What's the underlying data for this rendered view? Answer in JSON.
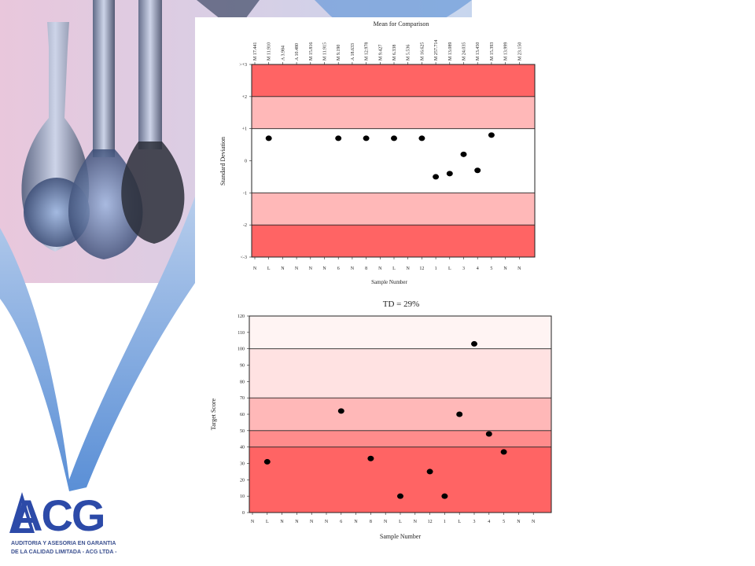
{
  "logo": {
    "brand": "ACG",
    "line1": "AUDITORIA Y ASESORIA EN GARANTIA",
    "line2": "DE LA CALIDAD LIMITADA - ACG LTDA -",
    "color": "#2c4aa8"
  },
  "colors": {
    "band_dark": "#ff6464",
    "band_mid": "#ffb8b8",
    "band_light": "#ffe2e2",
    "band_pale": "#fff4f3",
    "band_white": "#ffffff",
    "point": "#000000"
  },
  "chart_data": [
    {
      "type": "scatter",
      "title": "Mean for Comparison",
      "xlabel": "Sample Number",
      "ylabel": "Standard Deviation",
      "ylim": [
        -3,
        3
      ],
      "grid": false,
      "top_labels": [
        "M 17.441",
        "M 11.910",
        "A 3.984",
        "A 10.480",
        "M 15.816",
        "M 11.915",
        "M 9.190",
        "A 18.633",
        "M 12.978",
        "M 9.427",
        "M 6.338",
        "M 5.536",
        "M 16.625",
        "M 257.714",
        "M 13.089",
        "M 24.035",
        "M 13.450",
        "M 15.393",
        "M 13.999",
        "M 23.150"
      ],
      "categories": [
        "N",
        "L",
        "N",
        "N",
        "N",
        "N",
        "6",
        "N",
        "8",
        "N",
        "L",
        "N",
        "12",
        "1",
        "L",
        "3",
        "4",
        "5",
        "N",
        "N"
      ],
      "y_ticks": [
        ">+3",
        "+2",
        "+1",
        "0",
        "-1",
        "-2",
        "<-3"
      ],
      "bands": [
        {
          "from": 2,
          "to": 3,
          "color": "#ff6464"
        },
        {
          "from": 1,
          "to": 2,
          "color": "#ffb8b8"
        },
        {
          "from": -1,
          "to": 1,
          "color": "#ffffff"
        },
        {
          "from": -2,
          "to": -1,
          "color": "#ffb8b8"
        },
        {
          "from": -3,
          "to": -2,
          "color": "#ff6464"
        }
      ],
      "points": [
        {
          "x": 2,
          "y": 0.7
        },
        {
          "x": 7,
          "y": 0.7
        },
        {
          "x": 9,
          "y": 0.7
        },
        {
          "x": 11,
          "y": 0.7
        },
        {
          "x": 13,
          "y": 0.7
        },
        {
          "x": 14,
          "y": -0.5
        },
        {
          "x": 15,
          "y": -0.4
        },
        {
          "x": 16,
          "y": 0.2
        },
        {
          "x": 17,
          "y": -0.3
        },
        {
          "x": 18,
          "y": 0.8
        }
      ]
    },
    {
      "type": "scatter",
      "title": "TD = 29%",
      "xlabel": "Sample Number",
      "ylabel": "Target Score",
      "ylim": [
        0,
        120
      ],
      "grid": false,
      "categories": [
        "N",
        "L",
        "N",
        "N",
        "N",
        "N",
        "6",
        "N",
        "8",
        "N",
        "L",
        "N",
        "12",
        "1",
        "L",
        "3",
        "4",
        "5",
        "N",
        "N"
      ],
      "y_ticks": [
        0,
        10,
        20,
        30,
        40,
        50,
        60,
        70,
        80,
        90,
        100,
        110,
        120
      ],
      "bands": [
        {
          "from": 0,
          "to": 40,
          "color": "#ff6464"
        },
        {
          "from": 40,
          "to": 50,
          "color": "#ff8c8c"
        },
        {
          "from": 50,
          "to": 70,
          "color": "#ffb8b8"
        },
        {
          "from": 70,
          "to": 100,
          "color": "#ffe2e2"
        },
        {
          "from": 100,
          "to": 120,
          "color": "#fff4f3"
        }
      ],
      "points": [
        {
          "x": 2,
          "y": 31
        },
        {
          "x": 7,
          "y": 62
        },
        {
          "x": 9,
          "y": 33
        },
        {
          "x": 11,
          "y": 10
        },
        {
          "x": 13,
          "y": 25
        },
        {
          "x": 14,
          "y": 10
        },
        {
          "x": 15,
          "y": 60
        },
        {
          "x": 16,
          "y": 103
        },
        {
          "x": 17,
          "y": 48
        },
        {
          "x": 18,
          "y": 37
        }
      ]
    }
  ]
}
